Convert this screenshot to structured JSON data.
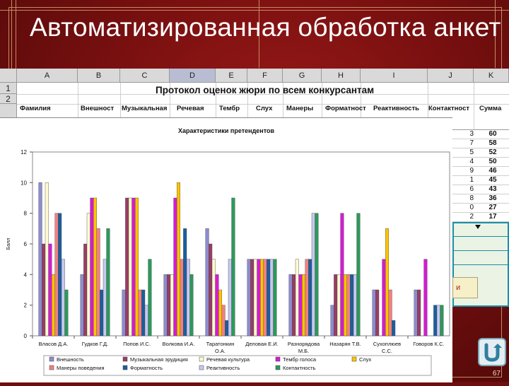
{
  "slide": {
    "title": "Автоматизированная обработка анкет",
    "page_number": "67"
  },
  "sheet": {
    "columns": [
      "A",
      "B",
      "C",
      "D",
      "E",
      "F",
      "G",
      "H",
      "I",
      "J",
      "K"
    ],
    "selected_column": "D",
    "rows": [
      "1",
      "2"
    ],
    "title": "Протокол оценок жюри по всем конкурсантам",
    "headers": [
      "Фамилия",
      "Внешност",
      "Музыкальная",
      "Речевая",
      "Тембр",
      "Слух",
      "Манеры",
      "Форматност",
      "Реактивность",
      "Контактност",
      "Сумма"
    ]
  },
  "rank_table": {
    "rows": [
      {
        "rank": "3",
        "sum": "60"
      },
      {
        "rank": "7",
        "sum": "58"
      },
      {
        "rank": "5",
        "sum": "52"
      },
      {
        "rank": "4",
        "sum": "50"
      },
      {
        "rank": "9",
        "sum": "46"
      },
      {
        "rank": "1",
        "sum": "45"
      },
      {
        "rank": "6",
        "sum": "43"
      },
      {
        "rank": "8",
        "sum": "36"
      },
      {
        "rank": "0",
        "sum": "27"
      },
      {
        "rank": "2",
        "sum": "17"
      }
    ],
    "note_fragment": "и"
  },
  "chart_data": {
    "type": "bar",
    "title": "Характеристики претендентов",
    "ylabel": "Балл",
    "ylim": [
      0,
      12
    ],
    "yticks": [
      0,
      2,
      4,
      6,
      8,
      10,
      12
    ],
    "categories": [
      "Власов Д.А.",
      "Гудков Г.Д.",
      "Попов И.С.",
      "Волкова И.А.",
      "Таратонкин О.А.",
      "Деловая Е.И.",
      "Разнорядова М.Б.",
      "Назарян Т.В.",
      "Сухоплюев С.С.",
      "Говоров К.С."
    ],
    "series": [
      {
        "name": "Внешность",
        "color": "#8c8cd0",
        "values": [
          10,
          4,
          3,
          4,
          7,
          5,
          4,
          2,
          3,
          3
        ]
      },
      {
        "name": "Музыкальная эрудиция",
        "color": "#9a3c66",
        "values": [
          6,
          6,
          9,
          4,
          6,
          5,
          4,
          4,
          3,
          3
        ]
      },
      {
        "name": "Речевая культура",
        "color": "#fffbd0",
        "values": [
          10,
          8,
          9,
          4,
          5,
          5,
          5,
          4,
          0,
          0
        ]
      },
      {
        "name": "Тембр голоса",
        "color": "#d61ad6",
        "values": [
          6,
          9,
          9,
          9,
          4,
          5,
          4,
          8,
          5,
          5
        ]
      },
      {
        "name": "Слух",
        "color": "#ffc400",
        "values": [
          4,
          9,
          9,
          10,
          3,
          5,
          4,
          4,
          7,
          0
        ]
      },
      {
        "name": "Манеры поведения",
        "color": "#f28080",
        "values": [
          8,
          7,
          3,
          5,
          2,
          5,
          5,
          4,
          3,
          0
        ]
      },
      {
        "name": "Форматность",
        "color": "#1a5fa0",
        "values": [
          8,
          3,
          3,
          7,
          1,
          5,
          5,
          4,
          1,
          2
        ]
      },
      {
        "name": "Реактивность",
        "color": "#c8c8f0",
        "values": [
          5,
          5,
          2,
          5,
          5,
          5,
          8,
          4,
          0,
          2
        ]
      },
      {
        "name": "Контактность",
        "color": "#2a9a5a",
        "values": [
          3,
          7,
          5,
          4,
          9,
          5,
          8,
          8,
          0,
          2
        ]
      }
    ],
    "legend_position": "bottom",
    "grid": true
  }
}
